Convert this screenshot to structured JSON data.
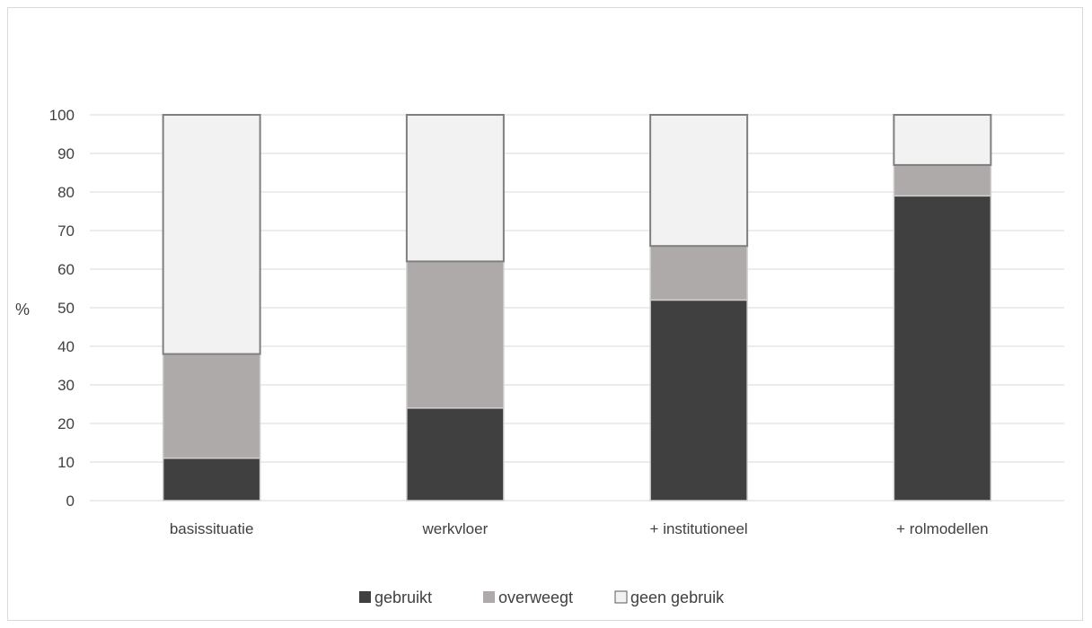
{
  "chart_data": {
    "type": "bar",
    "stacked": true,
    "title": "",
    "xlabel": "",
    "ylabel": "%",
    "ylim": [
      0,
      100
    ],
    "yticks": [
      0,
      10,
      20,
      30,
      40,
      50,
      60,
      70,
      80,
      90,
      100
    ],
    "grid": true,
    "legend_position": "bottom",
    "categories": [
      "basissituatie",
      "werkvloer",
      "+ institutioneel",
      "+ rolmodellen"
    ],
    "series": [
      {
        "name": "gebruikt",
        "color": "#404040",
        "values": [
          11,
          24,
          52,
          79
        ]
      },
      {
        "name": "overweegt",
        "color": "#aeaaaa",
        "values": [
          27,
          38,
          14,
          8
        ]
      },
      {
        "name": "geen gebruik",
        "color": "#f2f2f2",
        "values": [
          62,
          38,
          34,
          13
        ]
      }
    ]
  }
}
